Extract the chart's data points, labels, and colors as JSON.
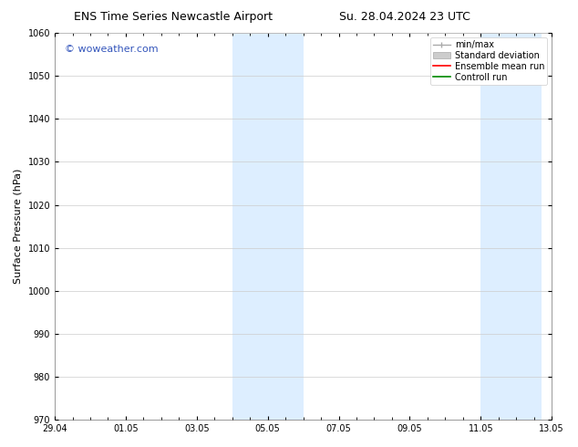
{
  "title_left": "ENS Time Series Newcastle Airport",
  "title_right": "Su. 28.04.2024 23 UTC",
  "ylabel": "Surface Pressure (hPa)",
  "ylim": [
    970,
    1060
  ],
  "yticks": [
    970,
    980,
    990,
    1000,
    1010,
    1020,
    1030,
    1040,
    1050,
    1060
  ],
  "xtick_labels": [
    "29.04",
    "01.05",
    "03.05",
    "05.05",
    "07.05",
    "09.05",
    "11.05",
    "13.05"
  ],
  "xtick_positions": [
    0,
    2,
    4,
    6,
    8,
    10,
    12,
    14
  ],
  "watermark": "© woweather.com",
  "watermark_color": "#3355bb",
  "bg_color": "#ffffff",
  "plot_bg_color": "#ffffff",
  "shaded_bands": [
    {
      "x_start": 5.0,
      "x_end": 7.0
    },
    {
      "x_start": 12.0,
      "x_end": 13.7
    }
  ],
  "shaded_color": "#ddeeff",
  "legend_items": [
    {
      "label": "min/max",
      "color": "#aaaaaa",
      "style": "line_with_caps"
    },
    {
      "label": "Standard deviation",
      "color": "#cccccc",
      "style": "bar"
    },
    {
      "label": "Ensemble mean run",
      "color": "#ff0000",
      "style": "line"
    },
    {
      "label": "Controll run",
      "color": "#008800",
      "style": "line"
    }
  ],
  "x_num_start": 0,
  "x_num_end": 14,
  "title_fontsize": 9,
  "tick_fontsize": 7,
  "ylabel_fontsize": 8,
  "watermark_fontsize": 8,
  "legend_fontsize": 7
}
